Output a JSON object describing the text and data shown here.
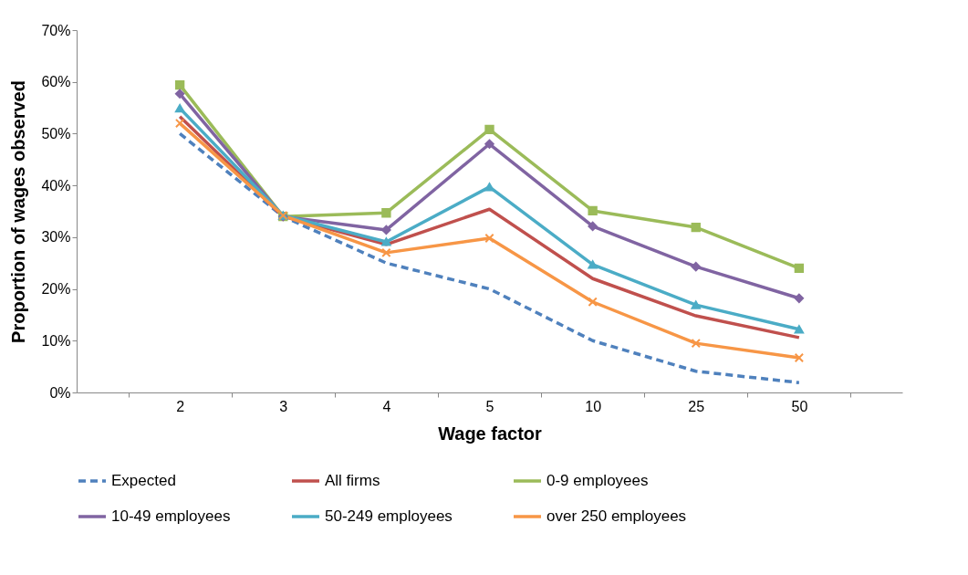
{
  "chart_data": {
    "type": "line",
    "xlabel": "Wage factor",
    "ylabel": "Proportion of wages observed",
    "categories": [
      "2",
      "3",
      "4",
      "5",
      "10",
      "25",
      "50"
    ],
    "ylim": [
      0,
      70
    ],
    "yticks": [
      {
        "value": 0,
        "label": "0%"
      },
      {
        "value": 10,
        "label": "10%"
      },
      {
        "value": 20,
        "label": "20%"
      },
      {
        "value": 30,
        "label": "30%"
      },
      {
        "value": 40,
        "label": "40%"
      },
      {
        "value": 50,
        "label": "50%"
      },
      {
        "value": 60,
        "label": "60%"
      },
      {
        "value": 70,
        "label": "70%"
      }
    ],
    "grid": false,
    "legend": "bottom",
    "series": [
      {
        "name": "Expected",
        "color": "#4f81bd",
        "line_style": "dashed",
        "marker": "none",
        "values": [
          50,
          34,
          25,
          20,
          10,
          4.1,
          1.9
        ]
      },
      {
        "name": "All firms",
        "color": "#c0504d",
        "line_style": "solid",
        "marker": "none",
        "values": [
          53.3,
          34,
          28.6,
          35.4,
          22,
          14.8,
          10.6
        ]
      },
      {
        "name": "0-9 employees",
        "color": "#9bbb59",
        "line_style": "solid",
        "marker": "square",
        "values": [
          59.4,
          34,
          34.7,
          50.8,
          35.1,
          31.9,
          24
        ]
      },
      {
        "name": "10-49 employees",
        "color": "#8064a2",
        "line_style": "solid",
        "marker": "diamond",
        "values": [
          57.7,
          34,
          31.4,
          48,
          32.1,
          24.3,
          18.2
        ]
      },
      {
        "name": "50-249 employees",
        "color": "#4bacc6",
        "line_style": "solid",
        "marker": "triangle",
        "values": [
          54.9,
          34.2,
          29.1,
          39.7,
          24.7,
          16.9,
          12.2
        ]
      },
      {
        "name": "over 250 employees",
        "color": "#f79646",
        "line_style": "solid",
        "marker": "cross",
        "values": [
          52,
          34.2,
          27,
          29.8,
          17.5,
          9.5,
          6.7
        ]
      }
    ]
  }
}
